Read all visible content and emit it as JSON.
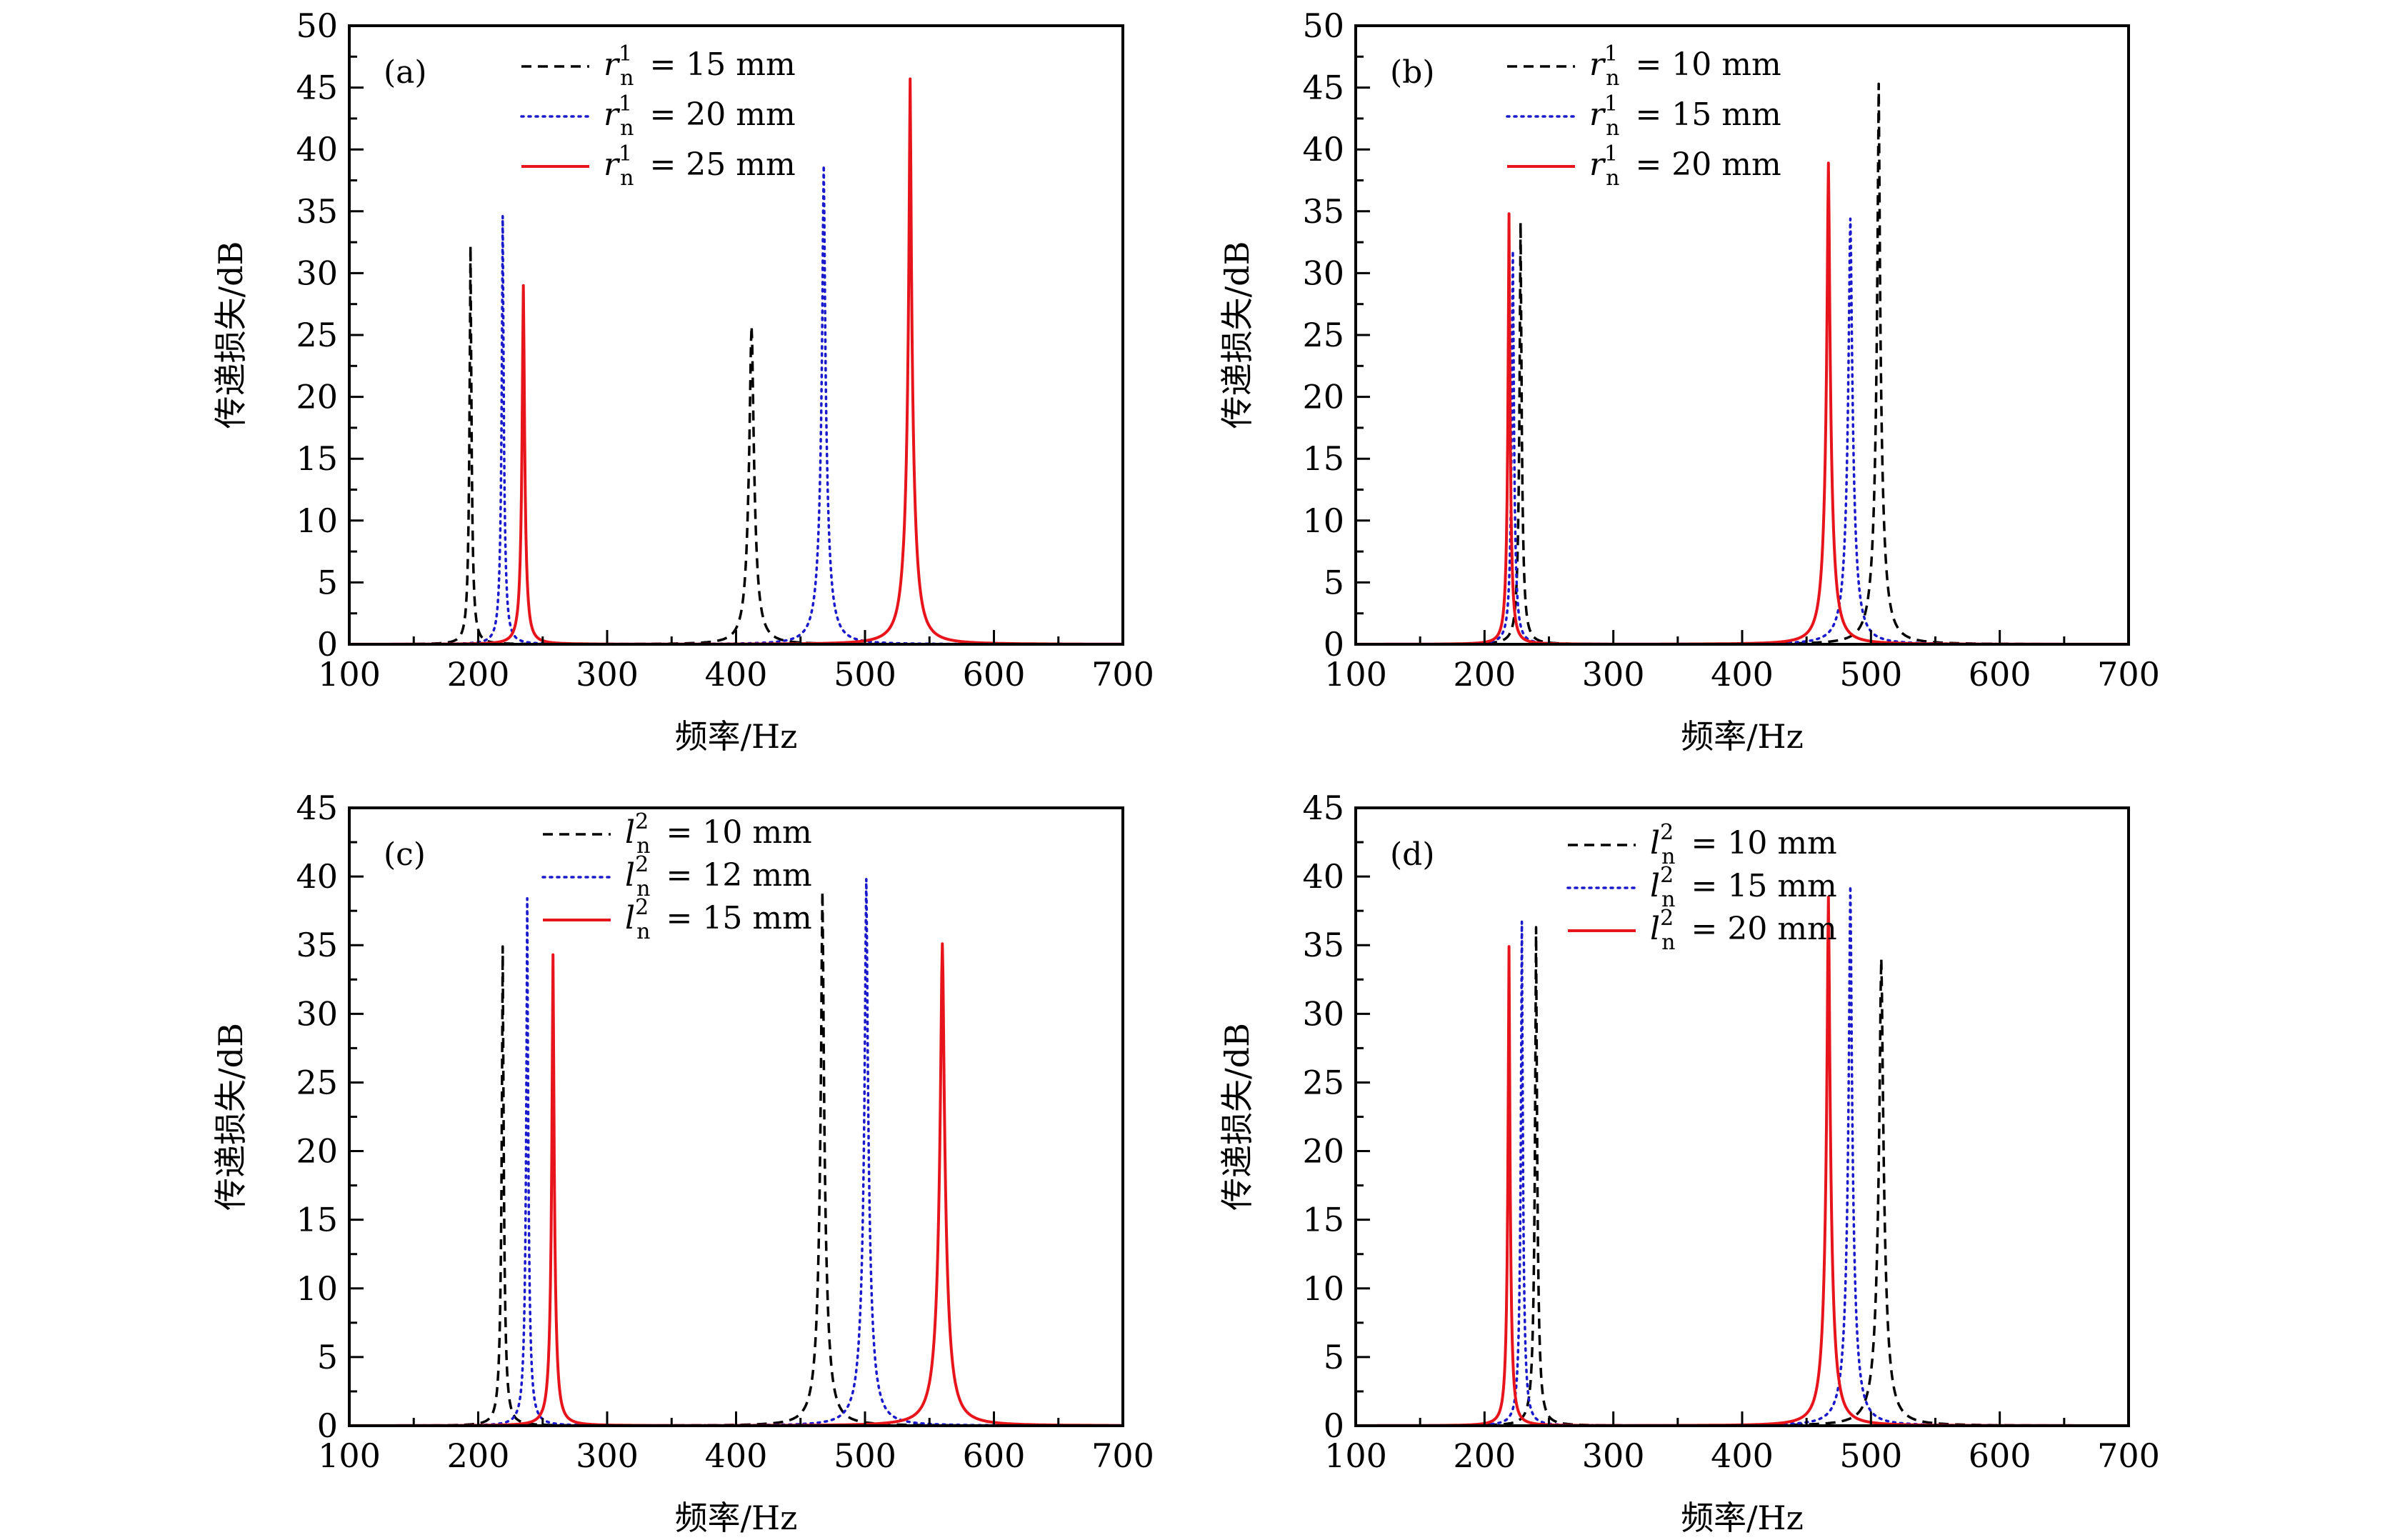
{
  "figure": {
    "panels_count": 4
  },
  "chart_data": [
    {
      "type": "line",
      "panel_label": "(a)",
      "xlabel": "频率/Hz",
      "ylabel": "传递损失/dB",
      "xlim": [
        100,
        700
      ],
      "ylim": [
        0,
        50
      ],
      "xticks": [
        100,
        200,
        300,
        400,
        500,
        600,
        700
      ],
      "yticks": [
        0,
        5,
        10,
        15,
        20,
        25,
        30,
        35,
        40,
        45,
        50
      ],
      "grid": false,
      "legend_position": "top-center",
      "legend_symbol": "r",
      "legend_sup": "1",
      "legend_sub": "n",
      "series": [
        {
          "name": "r_n^1 = 15 mm",
          "value_label": "= 15 mm",
          "style": "dashed",
          "color": "#000000",
          "peaks": [
            {
              "freq": 194,
              "dB": 32.2
            },
            {
              "freq": 412,
              "dB": 25.7
            }
          ]
        },
        {
          "name": "r_n^1 = 20 mm",
          "value_label": "= 20 mm",
          "style": "dotted",
          "color": "#1a1acc",
          "peaks": [
            {
              "freq": 219,
              "dB": 34.6
            },
            {
              "freq": 468,
              "dB": 38.7
            }
          ]
        },
        {
          "name": "r_n^1 = 25 mm",
          "value_label": "= 25 mm",
          "style": "solid",
          "color": "#e8141b",
          "peaks": [
            {
              "freq": 235,
              "dB": 29.0
            },
            {
              "freq": 535,
              "dB": 45.7
            }
          ]
        }
      ]
    },
    {
      "type": "line",
      "panel_label": "(b)",
      "xlabel": "频率/Hz",
      "ylabel": "传递损失/dB",
      "xlim": [
        100,
        700
      ],
      "ylim": [
        0,
        50
      ],
      "xticks": [
        100,
        200,
        300,
        400,
        500,
        600,
        700
      ],
      "yticks": [
        0,
        5,
        10,
        15,
        20,
        25,
        30,
        35,
        40,
        45,
        50
      ],
      "grid": false,
      "legend_position": "top-center",
      "legend_symbol": "r",
      "legend_sup": "1",
      "legend_sub": "n",
      "series": [
        {
          "name": "r_n^1 = 10 mm",
          "value_label": "= 10 mm",
          "style": "dashed",
          "color": "#000000",
          "peaks": [
            {
              "freq": 228,
              "dB": 34.1
            },
            {
              "freq": 506,
              "dB": 45.3
            }
          ]
        },
        {
          "name": "r_n^1 = 15 mm",
          "value_label": "= 15 mm",
          "style": "dotted",
          "color": "#1a1acc",
          "peaks": [
            {
              "freq": 222,
              "dB": 31.8
            },
            {
              "freq": 484,
              "dB": 34.4
            }
          ]
        },
        {
          "name": "r_n^1 = 20 mm",
          "value_label": "= 20 mm",
          "style": "solid",
          "color": "#e8141b",
          "peaks": [
            {
              "freq": 219,
              "dB": 34.8
            },
            {
              "freq": 467,
              "dB": 38.9
            }
          ]
        }
      ]
    },
    {
      "type": "line",
      "panel_label": "(c)",
      "xlabel": "频率/Hz",
      "ylabel": "传递损失/dB",
      "xlim": [
        100,
        700
      ],
      "ylim": [
        0,
        45
      ],
      "xticks": [
        100,
        200,
        300,
        400,
        500,
        600,
        700
      ],
      "yticks": [
        0,
        5,
        10,
        15,
        20,
        25,
        30,
        35,
        40,
        45
      ],
      "grid": false,
      "legend_position": "top-center",
      "legend_symbol": "l",
      "legend_sup": "2",
      "legend_sub": "n",
      "series": [
        {
          "name": "l_n^2 = 10 mm",
          "value_label": "= 10 mm",
          "style": "dashed",
          "color": "#000000",
          "peaks": [
            {
              "freq": 219,
              "dB": 34.9
            },
            {
              "freq": 467,
              "dB": 38.9
            }
          ]
        },
        {
          "name": "l_n^2 = 12 mm",
          "value_label": "= 12 mm",
          "style": "dotted",
          "color": "#1a1acc",
          "peaks": [
            {
              "freq": 238,
              "dB": 38.4
            },
            {
              "freq": 501,
              "dB": 39.8
            }
          ]
        },
        {
          "name": "l_n^2 = 15 mm",
          "value_label": "= 15 mm",
          "style": "solid",
          "color": "#e8141b",
          "peaks": [
            {
              "freq": 258,
              "dB": 34.3
            },
            {
              "freq": 560,
              "dB": 35.1
            }
          ]
        }
      ]
    },
    {
      "type": "line",
      "panel_label": "(d)",
      "xlabel": "频率/Hz",
      "ylabel": "传递损失/dB",
      "xlim": [
        100,
        700
      ],
      "ylim": [
        0,
        45
      ],
      "xticks": [
        100,
        200,
        300,
        400,
        500,
        600,
        700
      ],
      "yticks": [
        0,
        5,
        10,
        15,
        20,
        25,
        30,
        35,
        40,
        45
      ],
      "grid": false,
      "legend_position": "top-center",
      "legend_symbol": "l",
      "legend_sup": "2",
      "legend_sub": "n",
      "series": [
        {
          "name": "l_n^2 = 10 mm",
          "value_label": "= 10 mm",
          "style": "dashed",
          "color": "#000000",
          "peaks": [
            {
              "freq": 240,
              "dB": 36.3
            },
            {
              "freq": 508,
              "dB": 34.0
            }
          ]
        },
        {
          "name": "l_n^2 = 15 mm",
          "value_label": "= 15 mm",
          "style": "dotted",
          "color": "#1a1acc",
          "peaks": [
            {
              "freq": 229,
              "dB": 36.7
            },
            {
              "freq": 484,
              "dB": 39.3
            }
          ]
        },
        {
          "name": "l_n^2 = 20 mm",
          "value_label": "= 20 mm",
          "style": "solid",
          "color": "#e8141b",
          "peaks": [
            {
              "freq": 219,
              "dB": 34.9
            },
            {
              "freq": 467,
              "dB": 38.5
            }
          ]
        }
      ]
    }
  ]
}
